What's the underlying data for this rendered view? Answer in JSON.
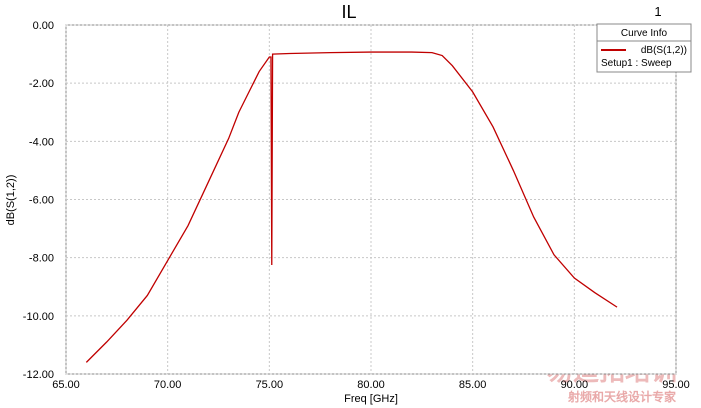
{
  "chart_data": {
    "type": "line",
    "title": "IL",
    "plot_number": "1",
    "x_label": "Freq [GHz]",
    "y_label": "dB(S(1,2))",
    "legend": {
      "title": "Curve Info",
      "corner": "upper right",
      "subtitle": "Setup1 : Sweep"
    },
    "watermark": {
      "title": "易迪拓培训",
      "subtitle": "射频和天线设计专家"
    },
    "grid": true,
    "x": [
      66,
      67,
      68,
      69,
      70,
      71,
      72,
      73,
      73.5,
      74,
      74.5,
      75,
      75.08,
      75.12,
      75.16,
      76,
      78,
      80,
      82,
      83,
      83.5,
      84,
      85,
      86,
      87,
      88,
      89,
      90,
      91,
      92.1
    ],
    "series": [
      {
        "name": "dB(S(1,2))",
        "color": "#c00000",
        "values": [
          -11.6,
          -10.9,
          -10.15,
          -9.3,
          -8.1,
          -6.9,
          -5.4,
          -3.9,
          -3.0,
          -2.3,
          -1.6,
          -1.1,
          -1.1,
          -8.25,
          -1.0,
          -0.98,
          -0.95,
          -0.93,
          -0.93,
          -0.95,
          -1.05,
          -1.4,
          -2.3,
          -3.5,
          -5.0,
          -6.6,
          -7.9,
          -8.7,
          -9.2,
          -9.7
        ]
      }
    ],
    "xlim": [
      65,
      95
    ],
    "xticks": [
      {
        "value": 65,
        "label": "65.00"
      },
      {
        "value": 70,
        "label": "70.00"
      },
      {
        "value": 75,
        "label": "75.00"
      },
      {
        "value": 80,
        "label": "80.00"
      },
      {
        "value": 85,
        "label": "85.00"
      },
      {
        "value": 90,
        "label": "90.00"
      },
      {
        "value": 95,
        "label": "95.00"
      }
    ],
    "ylim": [
      -12,
      0
    ],
    "yticks": [
      {
        "value": -12,
        "label": "-12.00"
      },
      {
        "value": -10,
        "label": "-10.00"
      },
      {
        "value": -8,
        "label": "-8.00"
      },
      {
        "value": -6,
        "label": "-6.00"
      },
      {
        "value": -4,
        "label": "-4.00"
      },
      {
        "value": -2,
        "label": "-2.00"
      },
      {
        "value": 0,
        "label": "0.00"
      }
    ]
  }
}
